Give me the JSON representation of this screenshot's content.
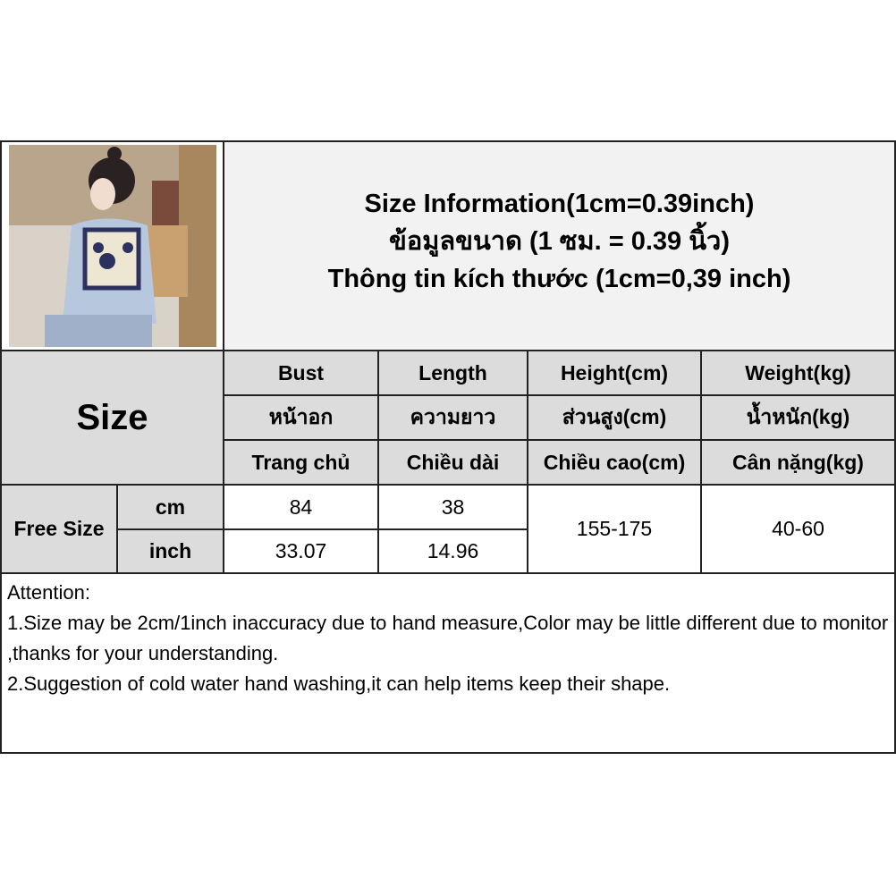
{
  "title": {
    "en": "Size Information(1cm=0.39inch)",
    "th": "ข้อมูลขนาด (1 ซม. = 0.39 นิ้ว)",
    "vi": "Thông tin kích thước (1cm=0,39 inch)"
  },
  "size_label": "Size",
  "columns": [
    {
      "en": "Bust",
      "th": "หน้าอก",
      "vi": "Trang chủ"
    },
    {
      "en": "Length",
      "th": "ความยาว",
      "vi": "Chiều dài"
    },
    {
      "en": "Height(cm)",
      "th": "ส่วนสูง(cm)",
      "vi": "Chiều cao(cm)"
    },
    {
      "en": "Weight(kg)",
      "th": "น้ำหนัก(kg)",
      "vi": "Cân nặng(kg)"
    }
  ],
  "row": {
    "name": "Free Size",
    "unit_cm": "cm",
    "unit_inch": "inch",
    "bust_cm": "84",
    "length_cm": "38",
    "bust_inch": "33.07",
    "length_inch": "14.96",
    "height": "155-175",
    "weight": "40-60"
  },
  "attention": [
    "Attention:",
    "1.Size may be 2cm/1inch inaccuracy due to hand measure,Color may be little different due to monitor ,thanks for your understanding.",
    "2.Suggestion of cold water hand washing,it can help items keep their shape."
  ]
}
